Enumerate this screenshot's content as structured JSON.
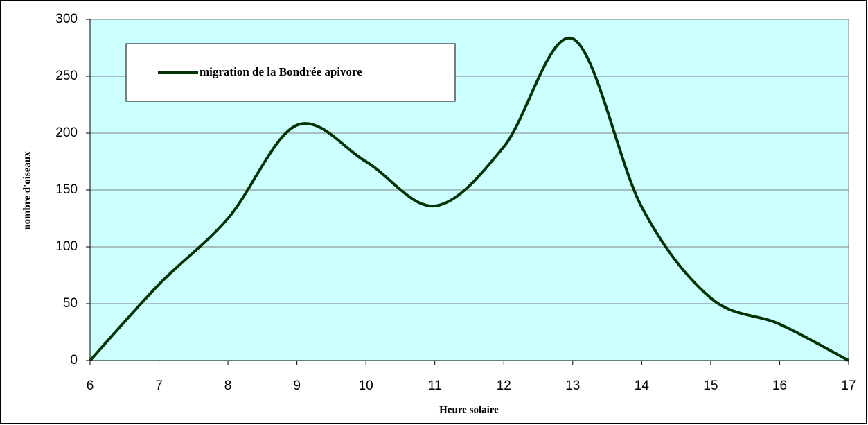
{
  "chart_data": {
    "type": "line",
    "x_label": "Heure solaire",
    "y_label": "nombre d'oiseaux",
    "x": [
      6,
      7,
      8,
      9,
      10,
      11,
      12,
      13,
      14,
      15,
      16,
      17
    ],
    "series": [
      {
        "name": "migration de la Bondrée apivore",
        "color": "#003300",
        "values": [
          0,
          67,
          125,
          207,
          175,
          136,
          188,
          283,
          135,
          55,
          32,
          0
        ]
      }
    ],
    "xlim": [
      6,
      17
    ],
    "xticks": [
      6,
      7,
      8,
      9,
      10,
      11,
      12,
      13,
      14,
      15,
      16,
      17
    ],
    "ylim": [
      0,
      300
    ],
    "yticks": [
      0,
      50,
      100,
      150,
      200,
      250,
      300
    ],
    "grid": true,
    "smooth": true,
    "background": "#ccffff"
  }
}
